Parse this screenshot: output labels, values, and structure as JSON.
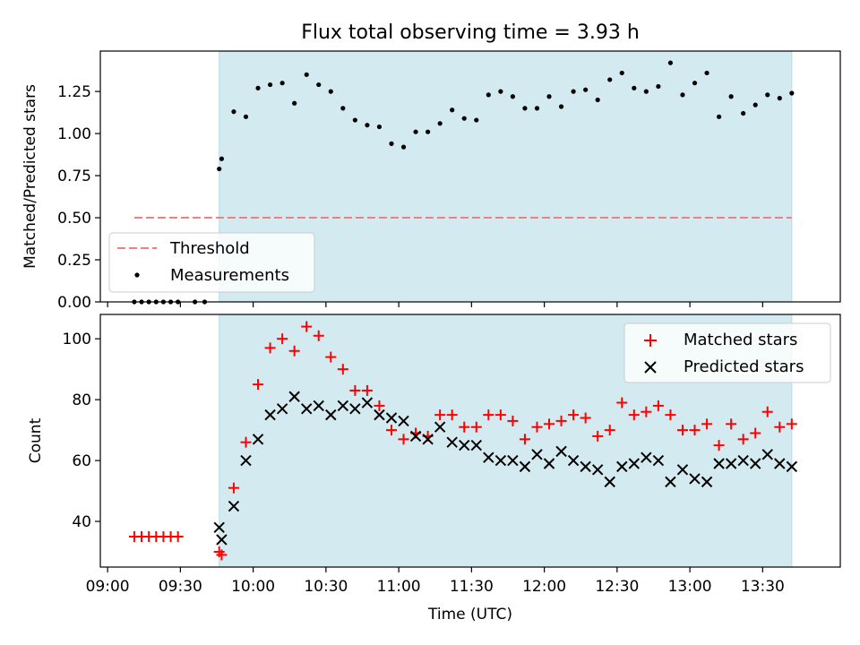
{
  "chart_data": [
    {
      "type": "scatter",
      "title": "Flux total observing time = 3.93 h",
      "xlabel": "",
      "ylabel": "Matched/Predicted stars",
      "xlim": [
        "08:57",
        "14:02"
      ],
      "ylim": [
        0,
        1.49
      ],
      "yticks": [
        0.0,
        0.25,
        0.5,
        0.75,
        1.0,
        1.25
      ],
      "ytick_labels": [
        "0.00",
        "0.25",
        "0.50",
        "0.75",
        "1.00",
        "1.25"
      ],
      "shaded_interval": {
        "start": "09:46",
        "end": "13:42",
        "color": "#d3eaf0"
      },
      "legend": {
        "position": "lower-left",
        "entries": [
          "Threshold",
          "Measurements"
        ]
      },
      "series": [
        {
          "name": "Threshold",
          "kind": "dashed-line",
          "color": "#f08080",
          "x": [
            "09:11",
            "13:42"
          ],
          "values": [
            0.5,
            0.5
          ]
        },
        {
          "name": "Measurements",
          "kind": "dot",
          "color": "#000000",
          "x": [
            "09:11",
            "09:14",
            "09:17",
            "09:20",
            "09:23",
            "09:26",
            "09:29",
            "09:36",
            "09:40",
            "09:46",
            "09:47",
            "09:52",
            "09:57",
            "10:02",
            "10:07",
            "10:12",
            "10:17",
            "10:22",
            "10:27",
            "10:32",
            "10:37",
            "10:42",
            "10:47",
            "10:52",
            "10:57",
            "11:02",
            "11:07",
            "11:12",
            "11:17",
            "11:22",
            "11:27",
            "11:32",
            "11:37",
            "11:42",
            "11:47",
            "11:52",
            "11:57",
            "12:02",
            "12:07",
            "12:12",
            "12:17",
            "12:22",
            "12:27",
            "12:32",
            "12:37",
            "12:42",
            "12:47",
            "12:52",
            "12:57",
            "13:02",
            "13:07",
            "13:12",
            "13:17",
            "13:22",
            "13:27",
            "13:32",
            "13:37",
            "13:42"
          ],
          "values": [
            0,
            0,
            0,
            0,
            0,
            0,
            0,
            0,
            0,
            0.79,
            0.85,
            1.13,
            1.1,
            1.27,
            1.29,
            1.3,
            1.18,
            1.35,
            1.29,
            1.25,
            1.15,
            1.08,
            1.05,
            1.04,
            0.94,
            0.92,
            1.01,
            1.01,
            1.06,
            1.14,
            1.09,
            1.08,
            1.23,
            1.25,
            1.22,
            1.15,
            1.15,
            1.22,
            1.16,
            1.25,
            1.26,
            1.2,
            1.32,
            1.36,
            1.27,
            1.25,
            1.28,
            1.42,
            1.23,
            1.3,
            1.36,
            1.1,
            1.22,
            1.12,
            1.17,
            1.23,
            1.21,
            1.24
          ]
        }
      ]
    },
    {
      "type": "scatter",
      "title": "",
      "xlabel": "Time (UTC)",
      "ylabel": "Count",
      "xlim": [
        "08:57",
        "14:02"
      ],
      "ylim": [
        25,
        108
      ],
      "yticks": [
        40,
        60,
        80,
        100
      ],
      "ytick_labels": [
        "40",
        "60",
        "80",
        "100"
      ],
      "xticks": [
        "09:00",
        "09:30",
        "10:00",
        "10:30",
        "11:00",
        "11:30",
        "12:00",
        "12:30",
        "13:00",
        "13:30"
      ],
      "xtick_labels": [
        "09:00",
        "09:30",
        "10:00",
        "10:30",
        "11:00",
        "11:30",
        "12:00",
        "12:30",
        "13:00",
        "13:30"
      ],
      "shaded_interval": {
        "start": "09:46",
        "end": "13:42",
        "color": "#d3eaf0"
      },
      "legend": {
        "position": "upper-right",
        "entries": [
          "Matched stars",
          "Predicted stars"
        ]
      },
      "series": [
        {
          "name": "Matched stars",
          "marker": "+",
          "color": "#ff0000",
          "x": [
            "09:11",
            "09:14",
            "09:17",
            "09:20",
            "09:23",
            "09:26",
            "09:29",
            "09:46",
            "09:47",
            "09:52",
            "09:57",
            "10:02",
            "10:07",
            "10:12",
            "10:17",
            "10:22",
            "10:27",
            "10:32",
            "10:37",
            "10:42",
            "10:47",
            "10:52",
            "10:57",
            "11:02",
            "11:07",
            "11:12",
            "11:17",
            "11:22",
            "11:27",
            "11:32",
            "11:37",
            "11:42",
            "11:47",
            "11:52",
            "11:57",
            "12:02",
            "12:07",
            "12:12",
            "12:17",
            "12:22",
            "12:27",
            "12:32",
            "12:37",
            "12:42",
            "12:47",
            "12:52",
            "12:57",
            "13:02",
            "13:07",
            "13:12",
            "13:17",
            "13:22",
            "13:27",
            "13:32",
            "13:37",
            "13:42"
          ],
          "values": [
            35,
            35,
            35,
            35,
            35,
            35,
            35,
            30,
            29,
            51,
            66,
            85,
            97,
            100,
            96,
            104,
            101,
            94,
            90,
            83,
            83,
            78,
            70,
            67,
            69,
            68,
            75,
            75,
            71,
            71,
            75,
            75,
            73,
            67,
            71,
            72,
            73,
            75,
            74,
            68,
            70,
            79,
            75,
            76,
            78,
            75,
            70,
            70,
            72,
            65,
            72,
            67,
            69,
            76,
            71,
            72
          ]
        },
        {
          "name": "Predicted stars",
          "marker": "x",
          "color": "#000000",
          "x": [
            "09:46",
            "09:47",
            "09:52",
            "09:57",
            "10:02",
            "10:07",
            "10:12",
            "10:17",
            "10:22",
            "10:27",
            "10:32",
            "10:37",
            "10:42",
            "10:47",
            "10:52",
            "10:57",
            "11:02",
            "11:07",
            "11:12",
            "11:17",
            "11:22",
            "11:27",
            "11:32",
            "11:37",
            "11:42",
            "11:47",
            "11:52",
            "11:57",
            "12:02",
            "12:07",
            "12:12",
            "12:17",
            "12:22",
            "12:27",
            "12:32",
            "12:37",
            "12:42",
            "12:47",
            "12:52",
            "12:57",
            "13:02",
            "13:07",
            "13:12",
            "13:17",
            "13:22",
            "13:27",
            "13:32",
            "13:37",
            "13:42"
          ],
          "values": [
            38,
            34,
            45,
            60,
            67,
            75,
            77,
            81,
            77,
            78,
            75,
            78,
            77,
            79,
            75,
            74,
            73,
            68,
            67,
            71,
            66,
            65,
            65,
            61,
            60,
            60,
            58,
            62,
            59,
            63,
            60,
            58,
            57,
            53,
            58,
            59,
            61,
            60,
            53,
            57,
            54,
            53,
            59,
            59,
            60,
            59,
            62,
            59,
            58
          ]
        }
      ]
    }
  ]
}
